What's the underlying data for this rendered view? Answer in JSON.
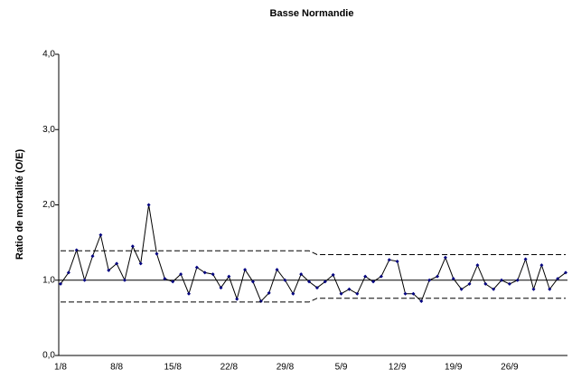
{
  "chart_data": {
    "type": "line",
    "title": "Basse Normandie",
    "y_label": "Ratio de mortalité (O/E)",
    "categories": [
      "1/8",
      null,
      null,
      null,
      null,
      null,
      null,
      "8/8",
      null,
      null,
      null,
      null,
      null,
      null,
      "15/8",
      null,
      null,
      null,
      null,
      null,
      null,
      "22/8",
      null,
      null,
      null,
      null,
      null,
      null,
      "29/8",
      null,
      null,
      null,
      null,
      null,
      null,
      "5/9",
      null,
      null,
      null,
      null,
      null,
      null,
      "12/9",
      null,
      null,
      null,
      null,
      null,
      null,
      "19/9",
      null,
      null,
      null,
      null,
      null,
      null,
      "26/9",
      null,
      null,
      null,
      null,
      null,
      null,
      null
    ],
    "series": [
      {
        "color": "#000000",
        "marker_color": "#000080",
        "style": "solid",
        "markers": true,
        "values": [
          0.95,
          1.1,
          1.4,
          1.0,
          1.32,
          1.6,
          1.13,
          1.22,
          1.0,
          1.45,
          1.22,
          2.0,
          1.35,
          1.02,
          0.98,
          1.08,
          0.82,
          1.17,
          1.1,
          1.08,
          0.9,
          1.05,
          0.75,
          1.14,
          0.98,
          0.72,
          0.83,
          1.14,
          1.0,
          0.82,
          1.08,
          0.98,
          0.9,
          0.98,
          1.07,
          0.82,
          0.88,
          0.82,
          1.05,
          0.98,
          1.05,
          1.27,
          1.25,
          0.82,
          0.82,
          0.72,
          1.0,
          1.05,
          1.3,
          1.02,
          0.88,
          0.95,
          1.2,
          0.95,
          0.88,
          1.0,
          0.95,
          1.0,
          1.28,
          0.88,
          1.2,
          0.88,
          1.02,
          1.1
        ]
      },
      {
        "color": "#000000",
        "style": "dashed",
        "markers": false,
        "values": [
          1.39,
          1.39,
          1.39,
          1.39,
          1.39,
          1.39,
          1.39,
          1.39,
          1.39,
          1.39,
          1.39,
          1.39,
          1.39,
          1.39,
          1.39,
          1.39,
          1.39,
          1.39,
          1.39,
          1.39,
          1.39,
          1.39,
          1.39,
          1.39,
          1.39,
          1.39,
          1.39,
          1.39,
          1.39,
          1.39,
          1.39,
          1.39,
          1.34,
          1.34,
          1.34,
          1.34,
          1.34,
          1.34,
          1.34,
          1.34,
          1.34,
          1.34,
          1.34,
          1.34,
          1.34,
          1.34,
          1.34,
          1.34,
          1.34,
          1.34,
          1.34,
          1.34,
          1.34,
          1.34,
          1.34,
          1.34,
          1.34,
          1.34,
          1.34,
          1.34,
          1.34,
          1.34,
          1.34,
          1.34
        ]
      },
      {
        "color": "#000000",
        "style": "dashed",
        "markers": false,
        "values": [
          0.71,
          0.71,
          0.71,
          0.71,
          0.71,
          0.71,
          0.71,
          0.71,
          0.71,
          0.71,
          0.71,
          0.71,
          0.71,
          0.71,
          0.71,
          0.71,
          0.71,
          0.71,
          0.71,
          0.71,
          0.71,
          0.71,
          0.71,
          0.71,
          0.71,
          0.71,
          0.71,
          0.71,
          0.71,
          0.71,
          0.71,
          0.71,
          0.76,
          0.76,
          0.76,
          0.76,
          0.76,
          0.76,
          0.76,
          0.76,
          0.76,
          0.76,
          0.76,
          0.76,
          0.76,
          0.76,
          0.76,
          0.76,
          0.76,
          0.76,
          0.76,
          0.76,
          0.76,
          0.76,
          0.76,
          0.76,
          0.76,
          0.76,
          0.76,
          0.76,
          0.76,
          0.76,
          0.76,
          0.76
        ]
      }
    ],
    "hline": 1,
    "ylim": [
      0,
      4
    ],
    "yticks": [
      {
        "value": 0,
        "label": "0,0"
      },
      {
        "value": 1,
        "label": "1,0"
      },
      {
        "value": 2,
        "label": "2,0"
      },
      {
        "value": 3,
        "label": "3,0"
      },
      {
        "value": 4,
        "label": "4,0"
      }
    ]
  }
}
